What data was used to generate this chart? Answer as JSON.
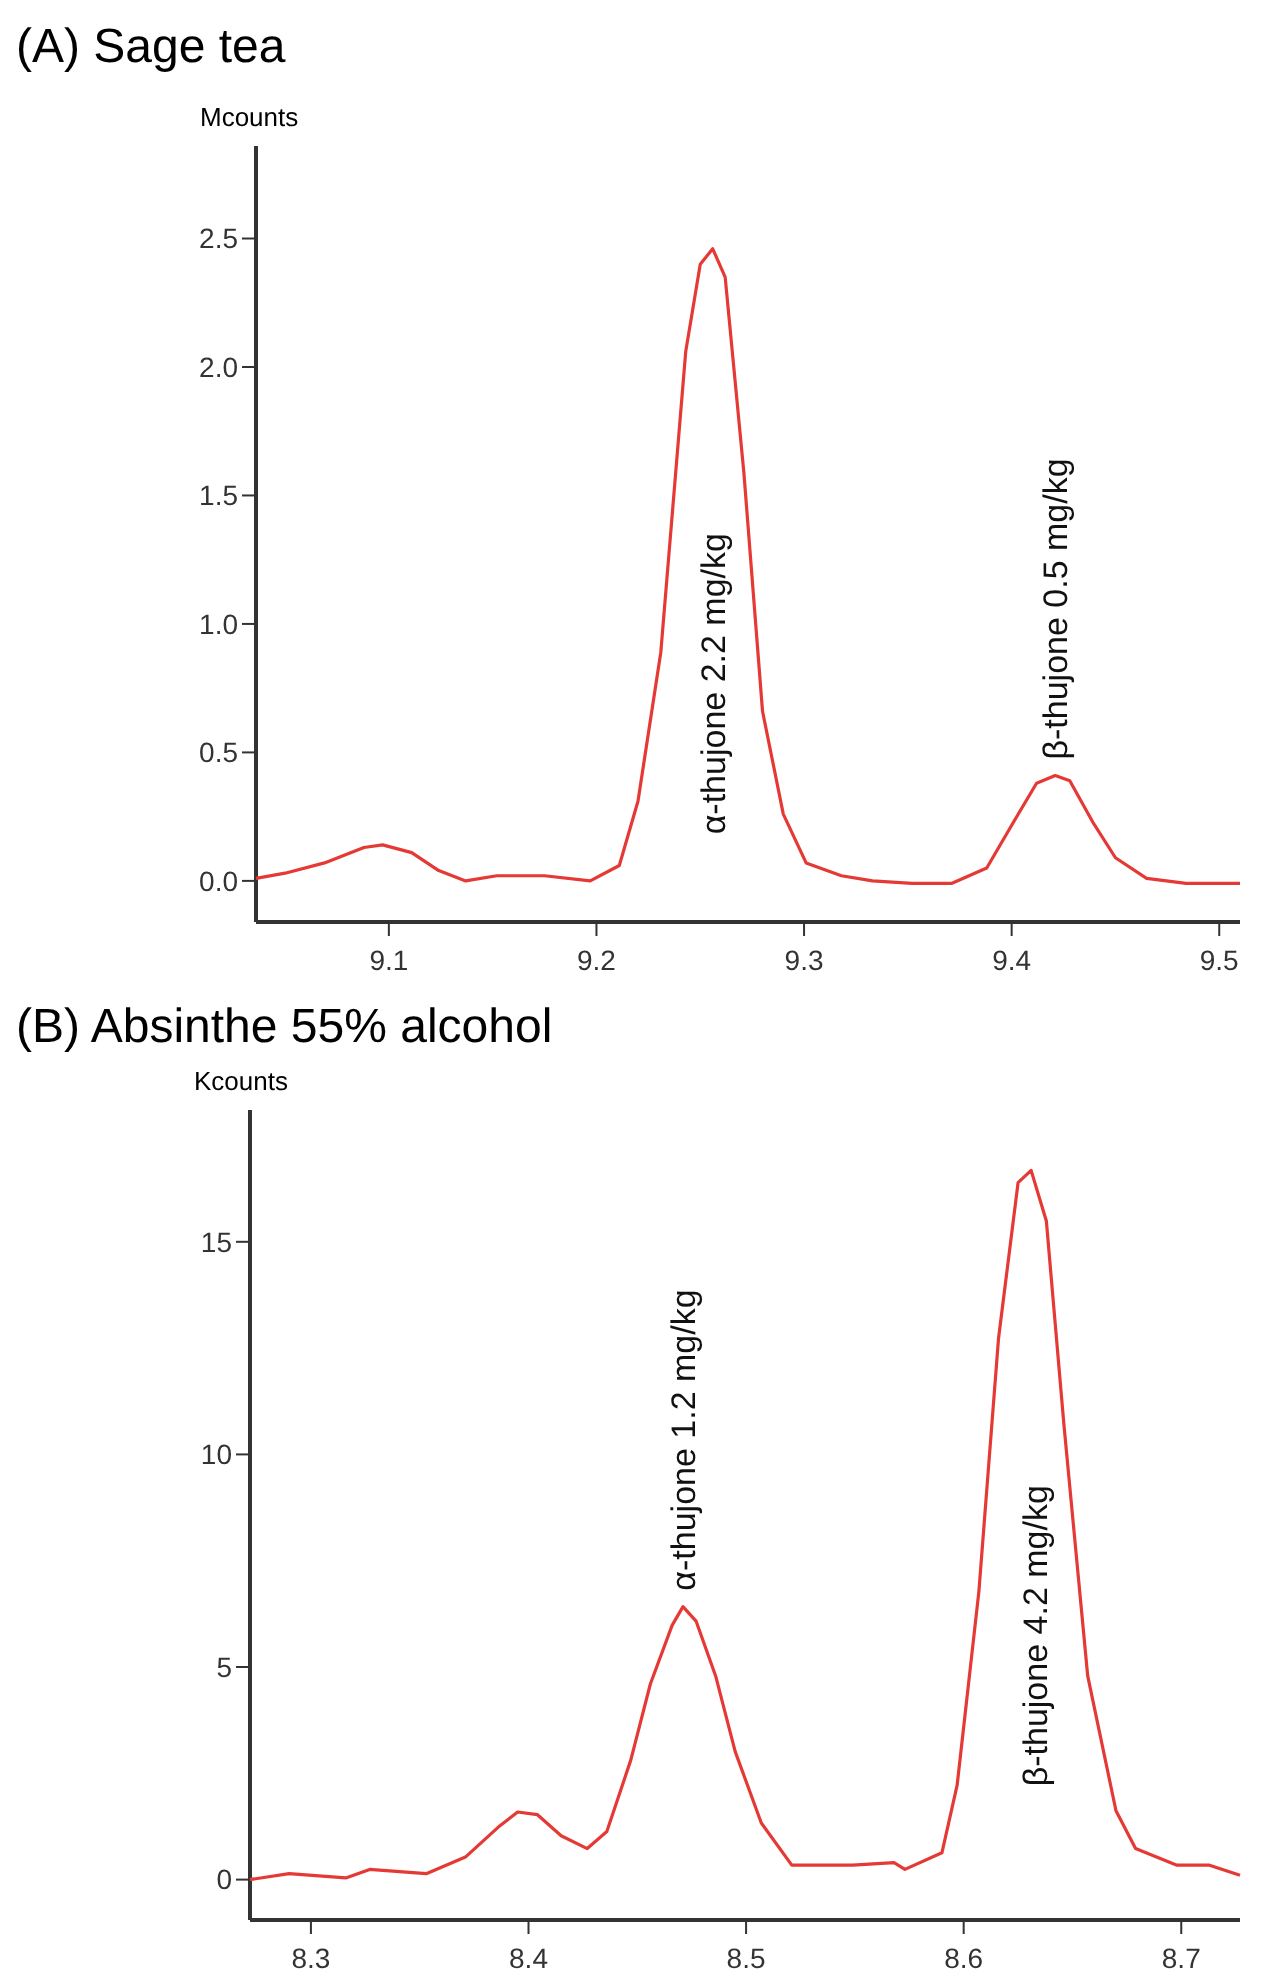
{
  "chart_data": [
    {
      "type": "line",
      "title": "(A) Sage tea",
      "ylabel": "Mcounts",
      "color": "#e53935",
      "marker": "none",
      "line_style": "solid",
      "grid": false,
      "xlim": [
        9.036,
        9.51
      ],
      "xticks": [
        9.1,
        9.2,
        9.3,
        9.4,
        9.5
      ],
      "ylim": [
        -0.16,
        2.86
      ],
      "yticks": [
        {
          "value": 0,
          "label": "0.0"
        },
        {
          "value": 0.5,
          "label": "0.5"
        },
        {
          "value": 1,
          "label": "1.0"
        },
        {
          "value": 1.5,
          "label": "1.5"
        },
        {
          "value": 2,
          "label": "2.0"
        },
        {
          "value": 2.5,
          "label": "2.5"
        }
      ],
      "x": [
        9.036,
        9.05,
        9.069,
        9.088,
        9.097,
        9.111,
        9.124,
        9.137,
        9.152,
        9.175,
        9.197,
        9.211,
        9.22,
        9.231,
        9.243,
        9.25,
        9.256,
        9.262,
        9.271,
        9.28,
        9.29,
        9.301,
        9.318,
        9.333,
        9.352,
        9.371,
        9.388,
        9.401,
        9.412,
        9.421,
        9.428,
        9.439,
        9.45,
        9.465,
        9.484,
        9.51
      ],
      "values": [
        0.01,
        0.03,
        0.07,
        0.13,
        0.14,
        0.11,
        0.04,
        0,
        0.02,
        0.02,
        0,
        0.06,
        0.31,
        0.89,
        2.06,
        2.4,
        2.46,
        2.35,
        1.59,
        0.66,
        0.26,
        0.07,
        0.02,
        0,
        -0.01,
        -0.01,
        0.05,
        0.23,
        0.38,
        0.41,
        0.39,
        0.23,
        0.09,
        0.01,
        -0.01,
        -0.01
      ],
      "annotations": [
        "α-thujone 2.2 mg/kg",
        {
          "text": "β-thujone 0.5 mg/kg",
          "x": 9.421,
          "y": 0.41
        }
      ]
    },
    {
      "type": "line",
      "title": "(B) Absinthe 55% alcohol",
      "ylabel": "Kcounts",
      "color": "#e53935",
      "marker": "none",
      "line_style": "solid",
      "grid": false,
      "xlim": [
        8.272,
        8.727
      ],
      "xticks": [
        8.3,
        8.4,
        8.5,
        8.6,
        8.7
      ],
      "ylim": [
        -0.95,
        18.1
      ],
      "yticks": [
        0,
        5,
        10,
        15
      ],
      "x": [
        8.272,
        8.29,
        8.316,
        8.327,
        8.353,
        8.371,
        8.386,
        8.395,
        8.404,
        8.415,
        8.427,
        8.436,
        8.447,
        8.456,
        8.466,
        8.471,
        8.477,
        8.486,
        8.495,
        8.507,
        8.521,
        8.549,
        8.568,
        8.573,
        8.59,
        8.597,
        8.607,
        8.616,
        8.625,
        8.631,
        8.638,
        8.646,
        8.657,
        8.67,
        8.679,
        8.698,
        8.713,
        8.727
      ],
      "values": [
        0,
        0.14,
        0.04,
        0.24,
        0.14,
        0.53,
        1.23,
        1.59,
        1.53,
        1.03,
        0.73,
        1.13,
        2.81,
        4.6,
        5.98,
        6.42,
        6.08,
        4.79,
        3.01,
        1.33,
        0.34,
        0.34,
        0.4,
        0.24,
        0.63,
        2.22,
        6.78,
        12.72,
        16.39,
        16.68,
        15.49,
        10.74,
        4.79,
        1.62,
        0.73,
        0.34,
        0.34,
        0.1
      ],
      "annotations": [
        {
          "text": "α-thujone 1.2 mg/kg",
          "x": 8.471,
          "y": 6.42
        },
        "β-thujone 4.2 mg/kg"
      ]
    }
  ]
}
